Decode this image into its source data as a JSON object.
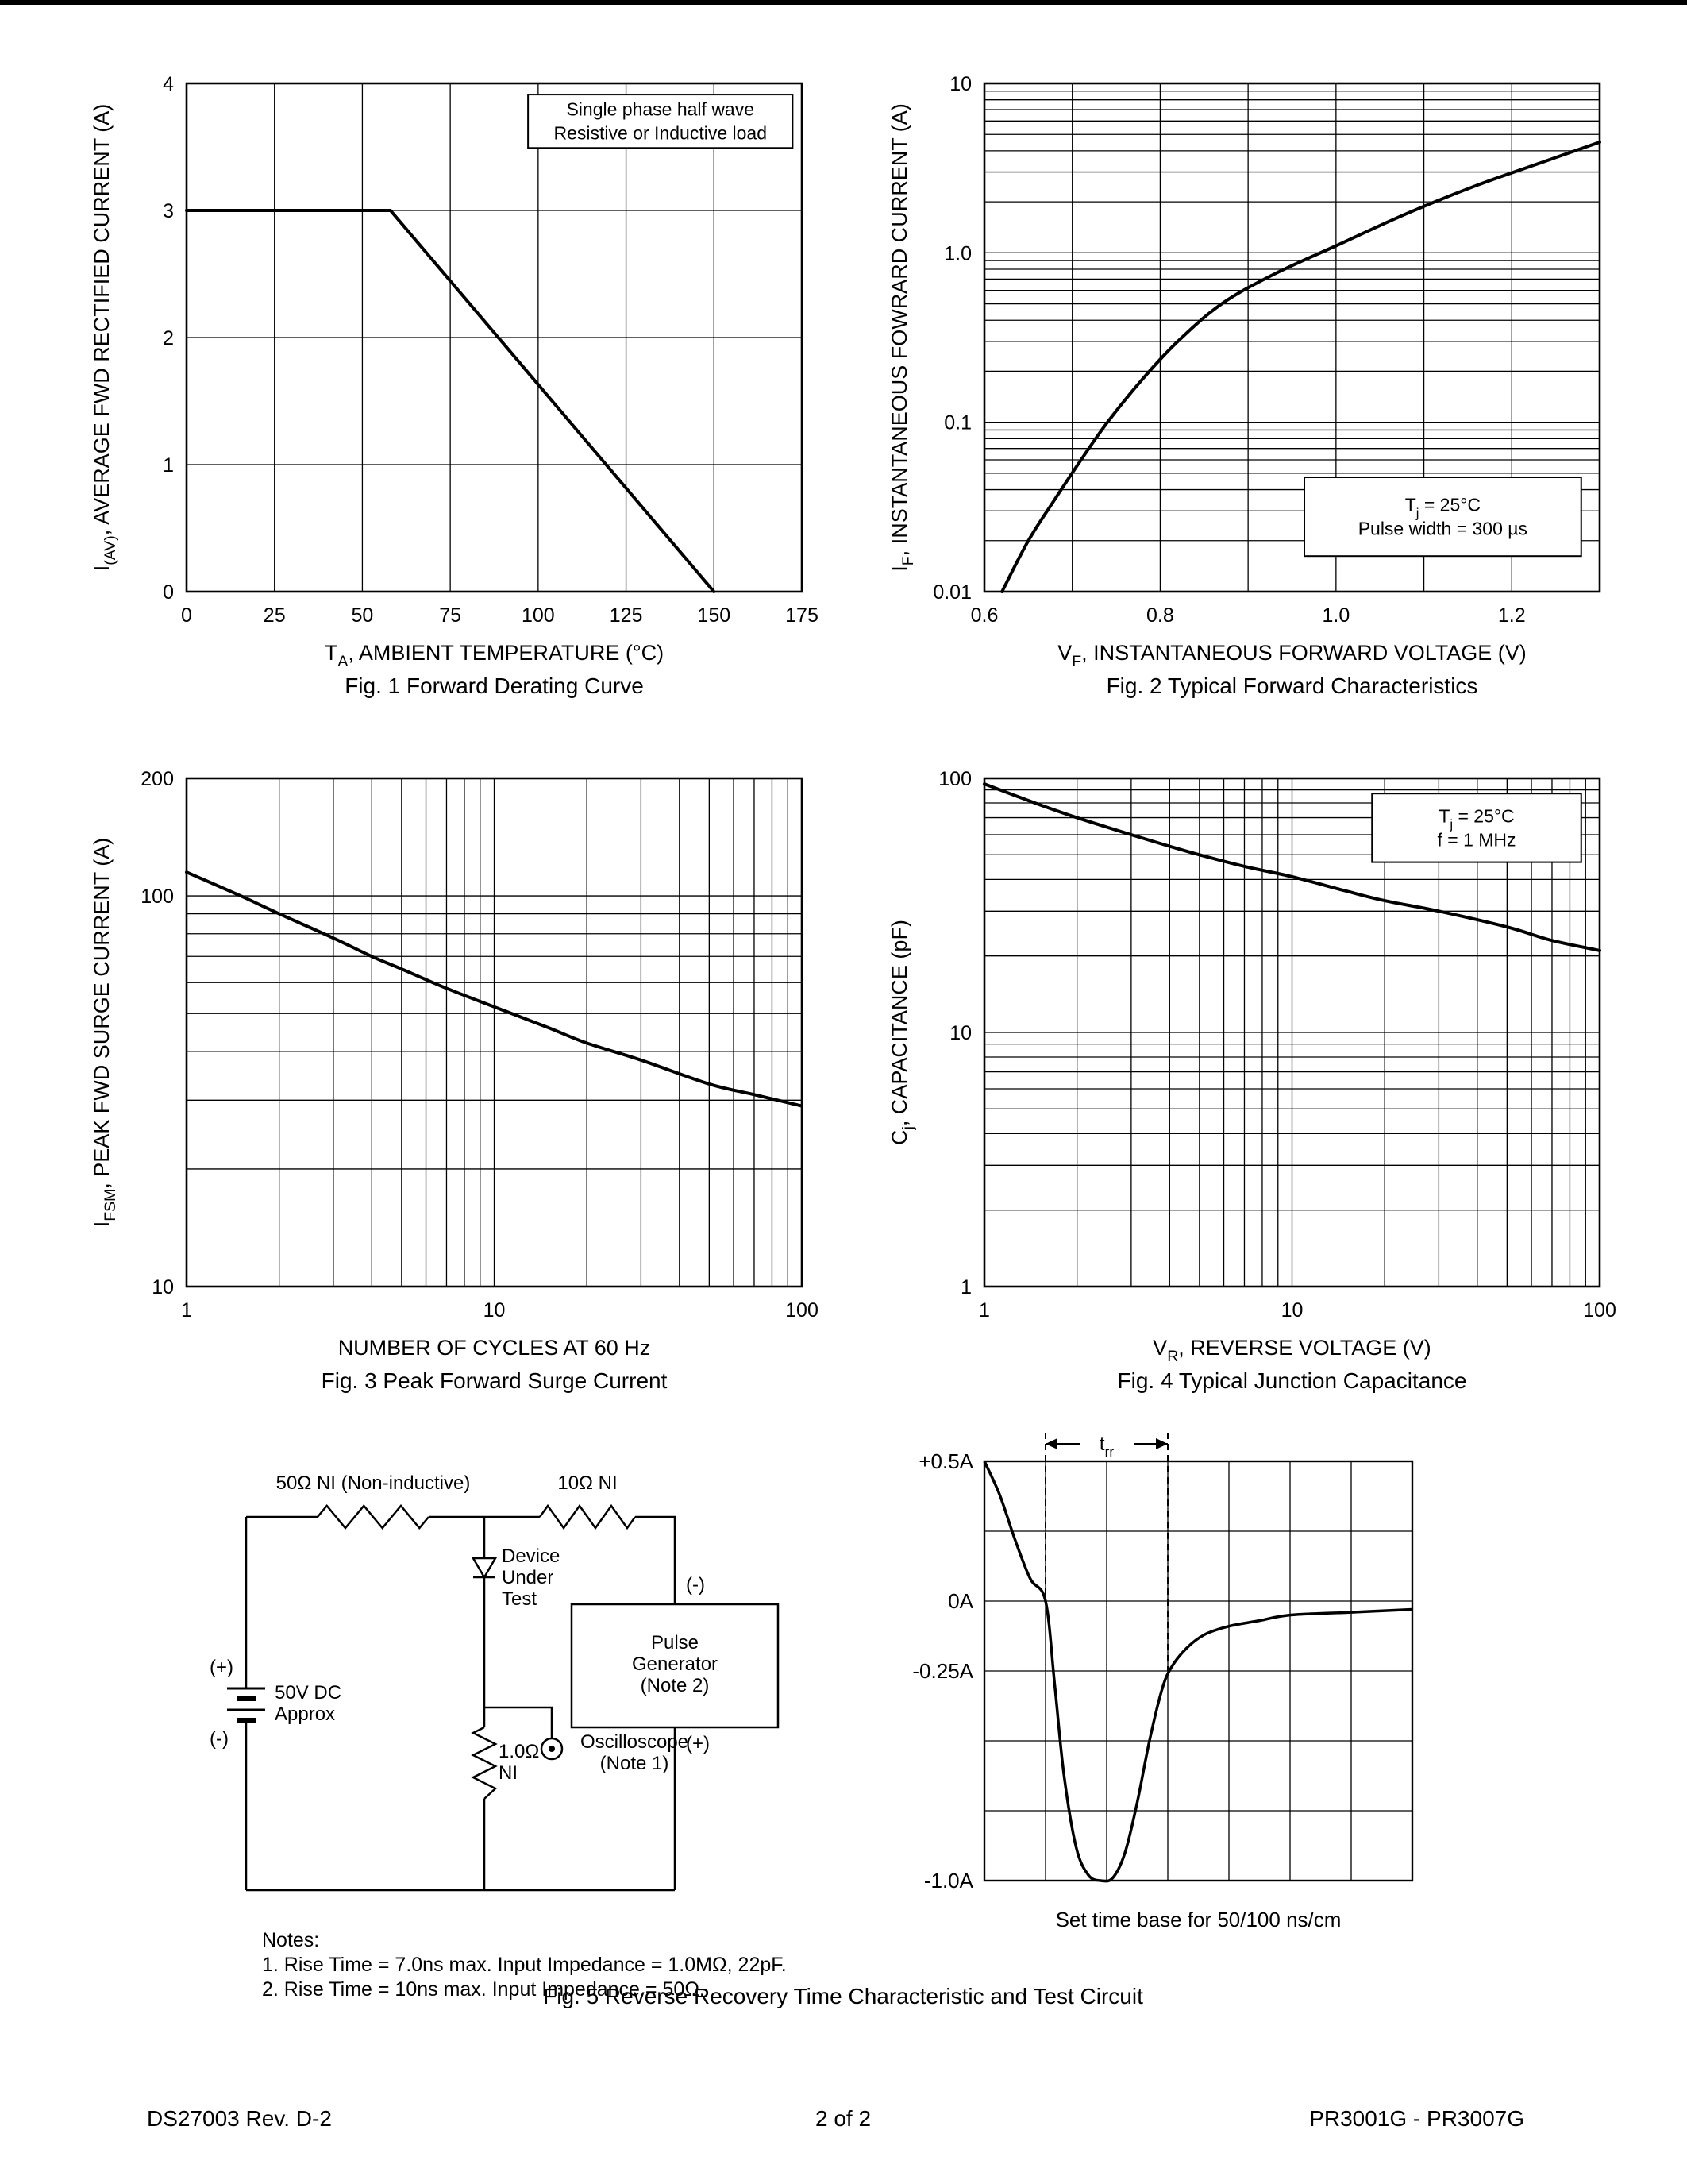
{
  "page": {
    "footer_left": "DS27003 Rev. D-2",
    "footer_center": "2 of 2",
    "footer_right": "PR3001G - PR3007G"
  },
  "fig5": {
    "caption": "Fig. 5  Reverse Recovery Time Characteristic and Test Circuit",
    "circuit": {
      "r1_label": "50Ω NI (Non-inductive)",
      "r2_label": "10Ω NI",
      "device_under_test": "Device\nUnder\nTest",
      "battery_plus": "(+)",
      "battery_label": "50V DC\nApprox",
      "battery_minus": "(-)",
      "pulse_generator": "Pulse\nGenerator\n(Note 2)",
      "pg_minus": "(-)",
      "pg_plus": "(+)",
      "r3_label": "1.0Ω\nNI",
      "oscilloscope": "Oscilloscope\n(Note 1)",
      "notes_title": "Notes:",
      "note1": "1. Rise Time = 7.0ns max. Input Impedance = 1.0MΩ, 22pF.",
      "note2": "2. Rise Time = 10ns max. Input Impedance = 50Ω."
    }
  },
  "chart_data": [
    {
      "id": "fig1",
      "type": "line",
      "caption": "Fig. 1  Forward Derating Curve",
      "xlabel": "T_{A}, AMBIENT TEMPERATURE (°C)",
      "ylabel": "I_{(AV)}, AVERAGE FWD RECTIFIED CURRENT (A)",
      "xscale": "linear",
      "yscale": "linear",
      "xlim": [
        0,
        175
      ],
      "ylim": [
        0,
        4
      ],
      "xticks": [
        [
          0,
          "0"
        ],
        [
          25,
          "25"
        ],
        [
          50,
          "50"
        ],
        [
          75,
          "75"
        ],
        [
          100,
          "100"
        ],
        [
          125,
          "125"
        ],
        [
          150,
          "150"
        ],
        [
          175,
          "175"
        ]
      ],
      "yticks": [
        [
          0,
          "0"
        ],
        [
          1,
          "1"
        ],
        [
          2,
          "2"
        ],
        [
          3,
          "3"
        ],
        [
          4,
          "4"
        ]
      ],
      "xgrid": [
        25,
        50,
        75,
        100,
        125,
        150
      ],
      "ygrid": [
        1,
        2,
        3
      ],
      "annotation": {
        "lines": [
          "Single phase half wave",
          "Resistive or Inductive load"
        ],
        "x": 0.555,
        "y": 0.022,
        "w": 0.43,
        "h": 0.105
      },
      "series": [
        {
          "name": "derating-curve",
          "smooth": false,
          "points": [
            [
              0,
              3
            ],
            [
              58,
              3
            ],
            [
              150,
              0
            ]
          ]
        }
      ]
    },
    {
      "id": "fig2",
      "type": "line",
      "caption": "Fig. 2  Typical Forward Characteristics",
      "xlabel": "V_{F}, INSTANTANEOUS FORWARD VOLTAGE (V)",
      "ylabel": "I_{F}, INSTANTANEOUS FOWRARD CURRENT (A)",
      "xscale": "linear",
      "yscale": "log",
      "xlim": [
        0.6,
        1.3
      ],
      "ylim": [
        0.01,
        10
      ],
      "xticks": [
        [
          0.6,
          "0.6"
        ],
        [
          0.8,
          "0.8"
        ],
        [
          1.0,
          "1.0"
        ],
        [
          1.2,
          "1.2"
        ]
      ],
      "yticks": [
        [
          0.01,
          "0.01"
        ],
        [
          0.1,
          "0.1"
        ],
        [
          1,
          "1.0"
        ],
        [
          10,
          "10"
        ]
      ],
      "xgrid": [
        0.7,
        0.8,
        0.9,
        1.0,
        1.1,
        1.2
      ],
      "ygrid": "log",
      "annotation": {
        "lines": [
          "T_{j} = 25°C",
          "Pulse width = 300 µs"
        ],
        "x": 0.52,
        "y": 0.775,
        "w": 0.45,
        "h": 0.155
      },
      "series": [
        {
          "name": "forward-characteristic-curve",
          "points": [
            [
              0.62,
              0.01
            ],
            [
              0.65,
              0.02
            ],
            [
              0.68,
              0.035
            ],
            [
              0.71,
              0.06
            ],
            [
              0.74,
              0.1
            ],
            [
              0.78,
              0.18
            ],
            [
              0.82,
              0.3
            ],
            [
              0.87,
              0.5
            ],
            [
              0.93,
              0.75
            ],
            [
              1.0,
              1.1
            ],
            [
              1.08,
              1.7
            ],
            [
              1.16,
              2.5
            ],
            [
              1.24,
              3.5
            ],
            [
              1.3,
              4.5
            ]
          ]
        }
      ]
    },
    {
      "id": "fig3",
      "type": "line",
      "caption": "Fig. 3  Peak Forward Surge Current",
      "xlabel": "NUMBER OF CYCLES AT 60 Hz",
      "ylabel": "I_{FSM}, PEAK FWD SURGE CURRENT (A)",
      "xscale": "log",
      "yscale": "log",
      "xlim": [
        1,
        100
      ],
      "ylim": [
        10,
        200
      ],
      "xticks": [
        [
          1,
          "1"
        ],
        [
          10,
          "10"
        ],
        [
          100,
          "100"
        ]
      ],
      "yticks": [
        [
          10,
          "10"
        ],
        [
          100,
          "100"
        ],
        [
          200,
          "200"
        ]
      ],
      "xgrid": "log",
      "ygrid": "log",
      "series": [
        {
          "name": "surge-current-curve",
          "points": [
            [
              1,
              115
            ],
            [
              1.5,
              100
            ],
            [
              2,
              90
            ],
            [
              3,
              78
            ],
            [
              4,
              70
            ],
            [
              5,
              65
            ],
            [
              7,
              58
            ],
            [
              10,
              52
            ],
            [
              15,
              46
            ],
            [
              20,
              42
            ],
            [
              30,
              38
            ],
            [
              50,
              33
            ],
            [
              70,
              31
            ],
            [
              100,
              29
            ]
          ]
        }
      ]
    },
    {
      "id": "fig4",
      "type": "line",
      "caption": "Fig. 4  Typical Junction Capacitance",
      "xlabel": "V_{R}, REVERSE VOLTAGE (V)",
      "ylabel": "C_{j}, CAPACITANCE (pF)",
      "xscale": "log",
      "yscale": "log",
      "xlim": [
        1,
        100
      ],
      "ylim": [
        1,
        100
      ],
      "xticks": [
        [
          1,
          "1"
        ],
        [
          10,
          "10"
        ],
        [
          100,
          "100"
        ]
      ],
      "yticks": [
        [
          1,
          "1"
        ],
        [
          10,
          "10"
        ],
        [
          100,
          "100"
        ]
      ],
      "xgrid": "log",
      "ygrid": "log",
      "annotation": {
        "lines": [
          "T_{j} = 25°C",
          "f = 1 MHz"
        ],
        "x": 0.63,
        "y": 0.03,
        "w": 0.34,
        "h": 0.135
      },
      "series": [
        {
          "name": "junction-capacitance-curve",
          "points": [
            [
              1,
              95
            ],
            [
              1.5,
              79
            ],
            [
              2,
              70
            ],
            [
              3,
              60
            ],
            [
              4,
              54
            ],
            [
              5,
              50
            ],
            [
              7,
              45
            ],
            [
              10,
              41
            ],
            [
              15,
              36
            ],
            [
              20,
              33
            ],
            [
              30,
              30
            ],
            [
              50,
              26
            ],
            [
              70,
              23
            ],
            [
              100,
              21
            ]
          ]
        }
      ]
    },
    {
      "id": "fig5-waveform",
      "type": "waveform",
      "x_divisions": 7,
      "ylim": [
        -1.0,
        0.5
      ],
      "y_step": 0.25,
      "ytick_labels": [
        [
          0.5,
          "+0.5A"
        ],
        [
          0,
          "0A"
        ],
        [
          -0.25,
          "-0.25A"
        ],
        [
          -1.0,
          "-1.0A"
        ]
      ],
      "trr": {
        "label": "t_{rr}",
        "x_start": 1,
        "x_end": 3,
        "y_at_start": 0,
        "y_at_end": -0.25
      },
      "footnote": "Set time base for 50/100 ns/cm",
      "series": [
        {
          "name": "reverse-recovery-current",
          "points": [
            [
              0,
              0.5
            ],
            [
              0.25,
              0.38
            ],
            [
              0.5,
              0.22
            ],
            [
              0.75,
              0.08
            ],
            [
              1,
              0
            ],
            [
              1.15,
              -0.3
            ],
            [
              1.3,
              -0.62
            ],
            [
              1.5,
              -0.88
            ],
            [
              1.7,
              -0.98
            ],
            [
              1.9,
              -1.0
            ],
            [
              2.1,
              -0.99
            ],
            [
              2.3,
              -0.9
            ],
            [
              2.5,
              -0.72
            ],
            [
              2.7,
              -0.5
            ],
            [
              2.9,
              -0.32
            ],
            [
              3.05,
              -0.24
            ],
            [
              3.3,
              -0.17
            ],
            [
              3.6,
              -0.12
            ],
            [
              4,
              -0.09
            ],
            [
              4.5,
              -0.07
            ],
            [
              5,
              -0.05
            ],
            [
              6,
              -0.04
            ],
            [
              7,
              -0.03
            ]
          ]
        }
      ]
    }
  ]
}
